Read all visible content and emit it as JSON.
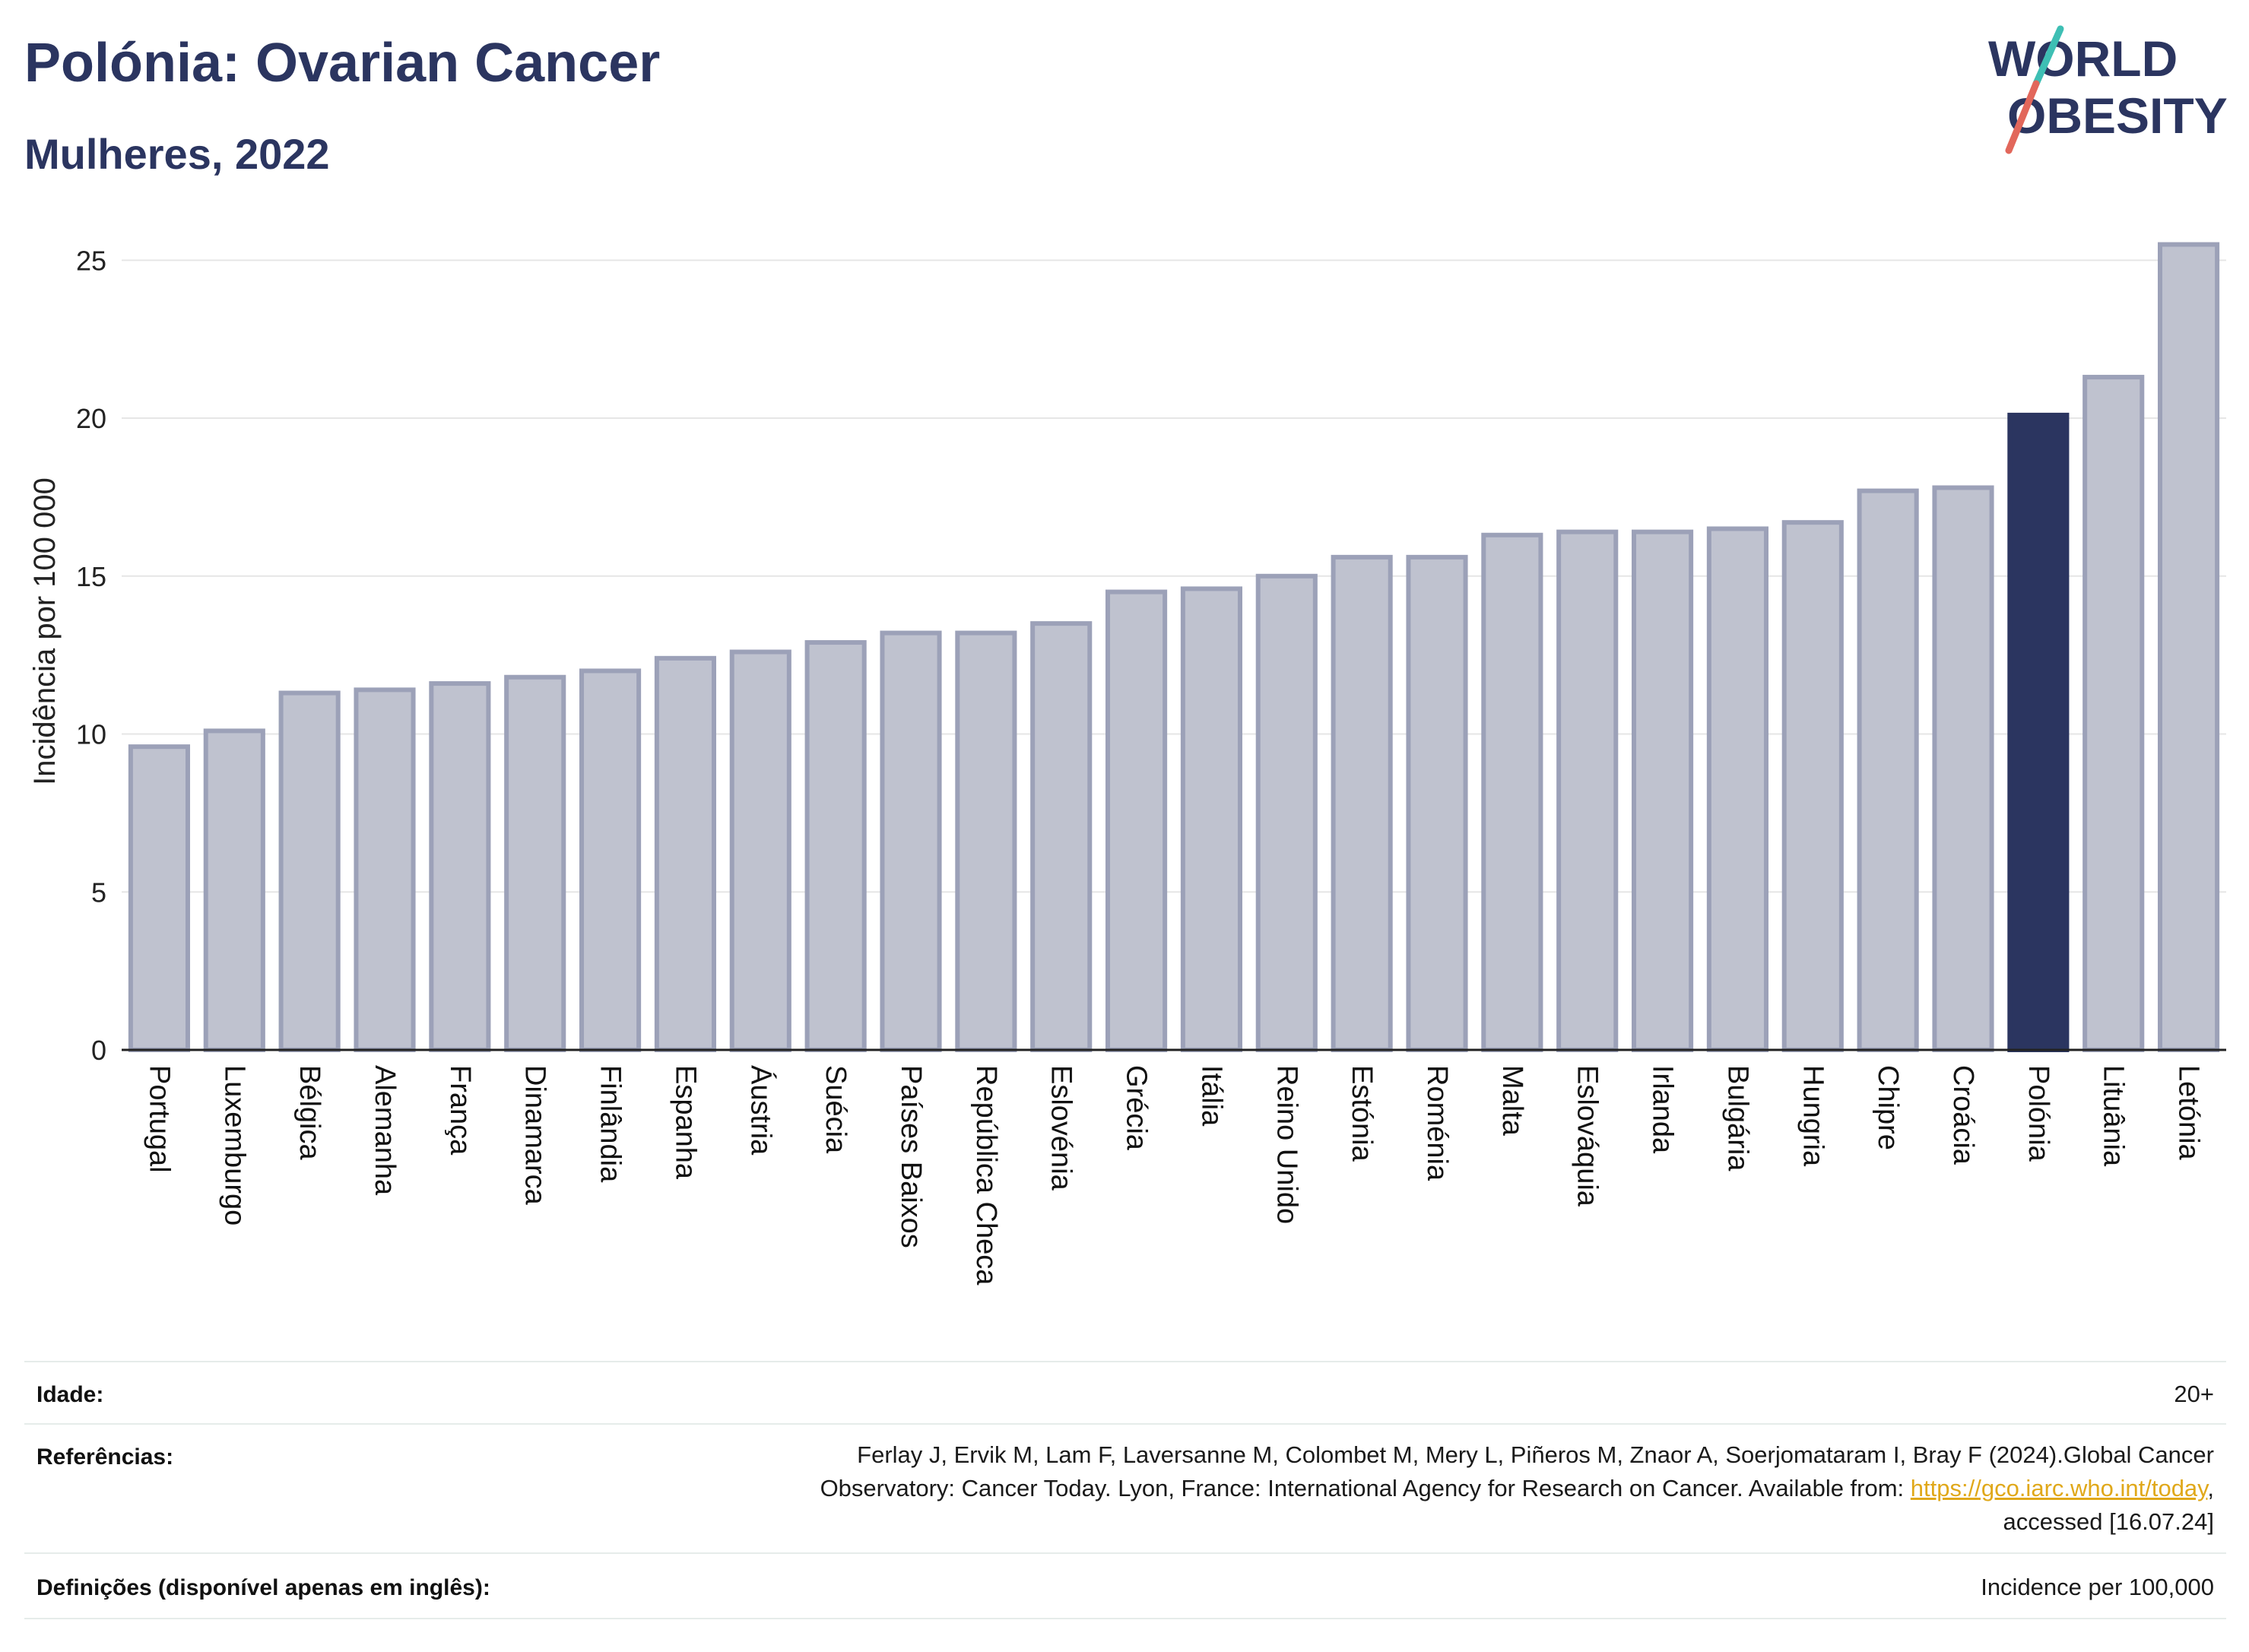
{
  "header": {
    "title": "Polónia: Ovarian Cancer",
    "subtitle": "Mulheres, 2022"
  },
  "logo": {
    "line1": "WORLD",
    "line2": "OBESITY"
  },
  "colors": {
    "highlight": "#2b3560",
    "bar_fill": "#bfc2cf",
    "bar_stroke": "#9ca1b8",
    "text_dark": "#2b3560",
    "link": "#e0a81a",
    "logo_teal": "#3ebfb4",
    "logo_red": "#e2675b"
  },
  "chart_data": {
    "type": "bar",
    "title": "Polónia: Ovarian Cancer",
    "subtitle": "Mulheres, 2022",
    "ylabel": "Incidência por 100 000",
    "xlabel": "",
    "ylim": [
      0,
      26.5
    ],
    "yticks": [
      0,
      5,
      10,
      15,
      20,
      25
    ],
    "grid": true,
    "highlight_category": "Polónia",
    "categories": [
      "Portugal",
      "Luxemburgo",
      "Bélgica",
      "Alemanha",
      "França",
      "Dinamarca",
      "Finlândia",
      "Espanha",
      "Áustria",
      "Suécia",
      "Países Baixos",
      "República Checa",
      "Eslovénia",
      "Grécia",
      "Itália",
      "Reino Unido",
      "Estónia",
      "Roménia",
      "Malta",
      "Eslováquia",
      "Irlanda",
      "Bulgária",
      "Hungria",
      "Chipre",
      "Croácia",
      "Polónia",
      "Lituânia",
      "Letónia"
    ],
    "values": [
      9.6,
      10.1,
      11.3,
      11.4,
      11.6,
      11.8,
      12.0,
      12.4,
      12.6,
      12.9,
      13.2,
      13.2,
      13.5,
      14.5,
      14.6,
      15.0,
      15.6,
      15.6,
      16.3,
      16.4,
      16.4,
      16.5,
      16.7,
      17.7,
      17.8,
      20.1,
      21.3,
      25.5
    ]
  },
  "footer": {
    "age_label": "Idade:",
    "age_value": "20+",
    "ref_label": "Referências:",
    "ref_line1": "Ferlay J, Ervik M, Lam F, Laversanne M, Colombet M, Mery L, Piñeros M, Znaor A, Soerjomataram I, Bray F (2024).Global Cancer",
    "ref_line2_pre": "Observatory: Cancer Today. Lyon, France: International Agency for Research on Cancer. Available from: ",
    "ref_link": "https://gco.iarc.who.int/today",
    "ref_line2_post": ",",
    "ref_line3": "accessed [16.07.24]",
    "def_label": "Definições (disponível apenas em inglês):",
    "def_value": "Incidence per 100,000"
  }
}
